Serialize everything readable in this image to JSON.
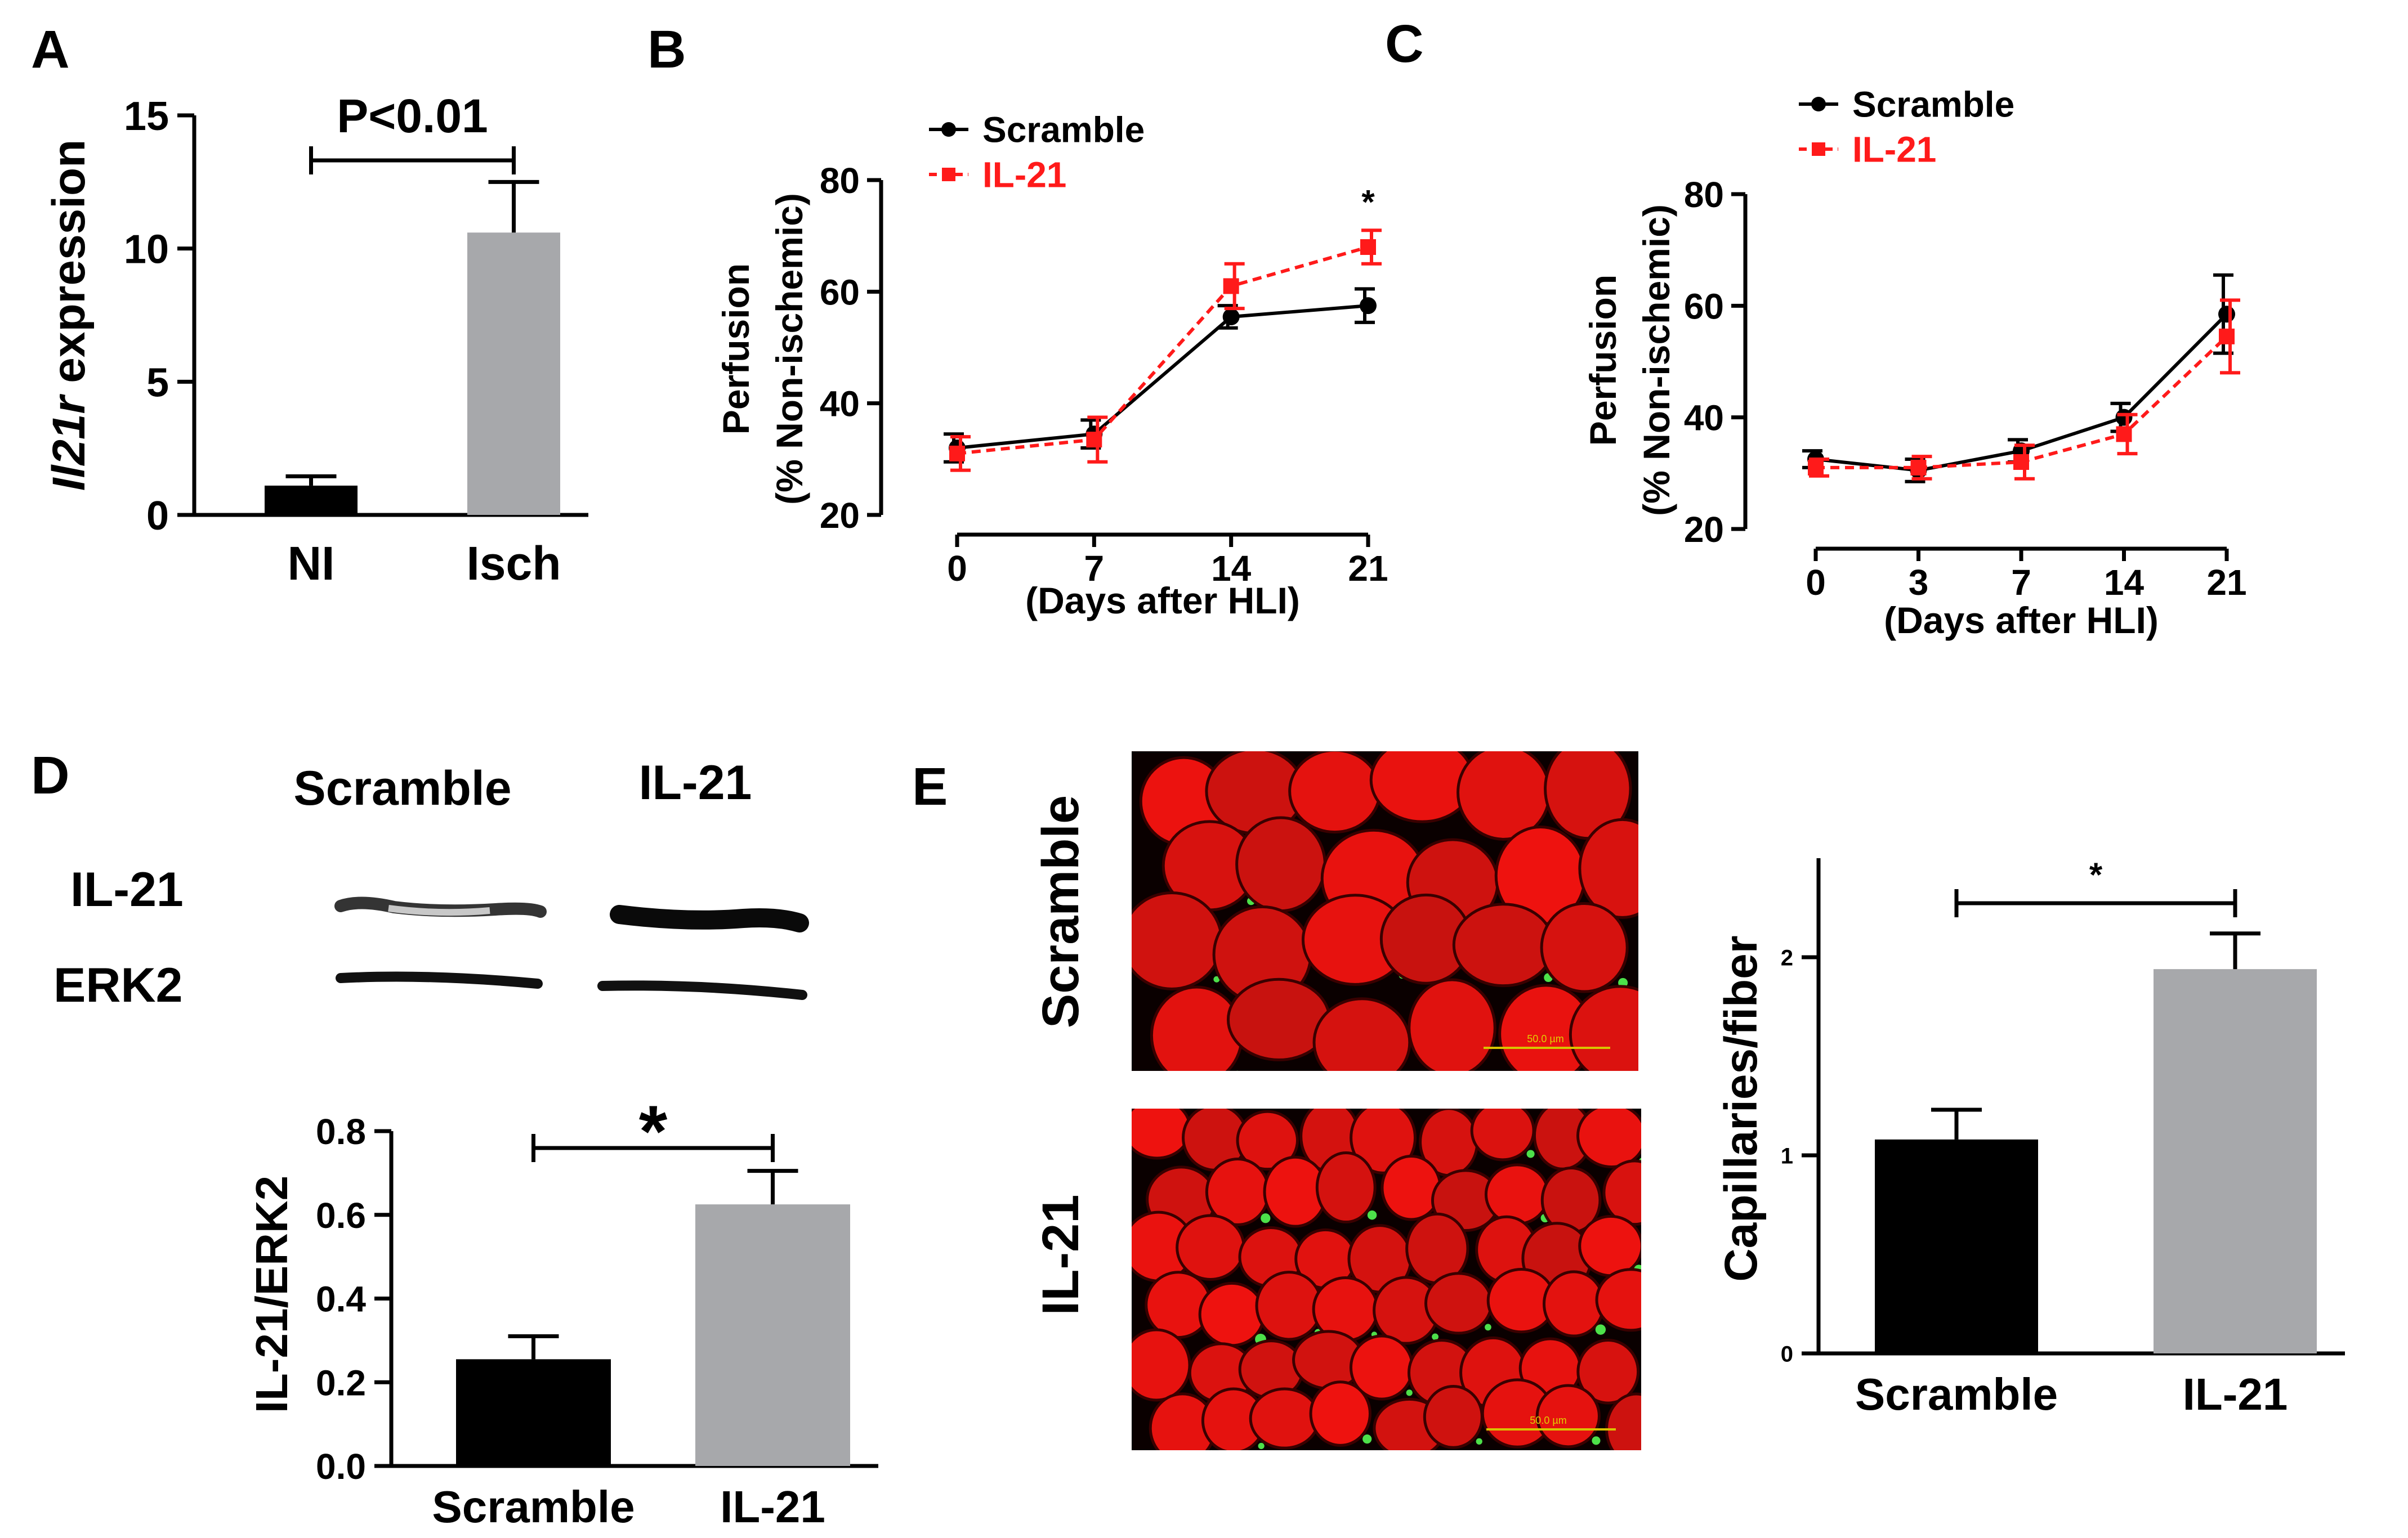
{
  "panels": {
    "A": {
      "letter": "A"
    },
    "B": {
      "letter": "B"
    },
    "C": {
      "letter": "C"
    },
    "D": {
      "letter": "D",
      "blot": {
        "lane_labels": [
          "Scramble",
          "IL-21"
        ],
        "row_labels": [
          "IL-21",
          "ERK2"
        ]
      }
    },
    "E": {
      "letter": "E",
      "image_labels": [
        "Scramble",
        "IL-21"
      ],
      "scale_bar_text": "50.0 µm"
    }
  },
  "colors": {
    "black_series": "#000000",
    "red_series": "#ff1a1a",
    "grey_bar": "#a7a8ab",
    "tissue_red": "#e8130f",
    "capillary_green": "#4de04a"
  },
  "chart_data": [
    {
      "id": "A",
      "type": "bar",
      "categories": [
        "NI",
        "Isch"
      ],
      "values": [
        1.1,
        10.6
      ],
      "errors": [
        0.35,
        1.9
      ],
      "colors": [
        "#000000",
        "#a7a8ab"
      ],
      "ylabel_italic": "Il21r",
      "ylabel_rest": " expression",
      "ylim": [
        0,
        15
      ],
      "yticks": [
        "0",
        "5",
        "10",
        "15"
      ],
      "annotation": "P<0.01"
    },
    {
      "id": "B",
      "type": "line",
      "x": [
        0,
        7,
        14,
        21
      ],
      "xticks": [
        "0",
        "7",
        "14",
        "21"
      ],
      "series": [
        {
          "name": "Scramble",
          "color": "#000000",
          "dashed": false,
          "marker": "circle",
          "values": [
            32,
            34.5,
            55.5,
            57.5
          ],
          "errors": [
            2.5,
            2.5,
            2,
            3
          ]
        },
        {
          "name": "IL-21",
          "color": "#ff1a1a",
          "dashed": true,
          "marker": "square",
          "values": [
            31,
            33.5,
            61,
            68
          ],
          "errors": [
            3,
            4,
            4,
            3
          ]
        }
      ],
      "ylabel_line1": "Perfusion",
      "ylabel_line2": "(% Non-ischemic)",
      "xlabel": "(Days after HLI)",
      "ylim": [
        20,
        80
      ],
      "yticks": [
        "20",
        "40",
        "60",
        "80"
      ],
      "star_label": "*",
      "star_at": 21
    },
    {
      "id": "C",
      "type": "line",
      "x": [
        0,
        3,
        7,
        14,
        21
      ],
      "xticks": [
        "0",
        "3",
        "7",
        "14",
        "21"
      ],
      "series": [
        {
          "name": "Scramble",
          "color": "#000000",
          "dashed": false,
          "marker": "circle",
          "values": [
            32.5,
            30.5,
            34,
            40,
            58.5
          ],
          "errors": [
            1.5,
            2,
            2,
            2.5,
            7
          ]
        },
        {
          "name": "IL-21",
          "color": "#ff1a1a",
          "dashed": true,
          "marker": "square",
          "values": [
            31,
            31,
            32,
            37,
            54.5
          ],
          "errors": [
            1.5,
            2,
            3,
            3.5,
            6.5
          ]
        }
      ],
      "ylabel_line1": "Perfusion",
      "ylabel_line2": "(% Non-ischemic)",
      "xlabel": "(Days after HLI)",
      "ylim": [
        20,
        80
      ],
      "yticks": [
        "20",
        "40",
        "60",
        "80"
      ]
    },
    {
      "id": "D",
      "type": "bar",
      "categories": [
        "Scramble",
        "IL-21"
      ],
      "values": [
        0.255,
        0.625
      ],
      "errors": [
        0.055,
        0.08
      ],
      "colors": [
        "#000000",
        "#a7a8ab"
      ],
      "ylabel": "IL-21/ERK2",
      "ylim": [
        0,
        0.8
      ],
      "yticks": [
        "0.0",
        "0.2",
        "0.4",
        "0.6",
        "0.8"
      ],
      "annotation": "*"
    },
    {
      "id": "E",
      "type": "bar",
      "categories": [
        "Scramble",
        "IL-21"
      ],
      "values": [
        1.08,
        1.94
      ],
      "errors": [
        0.15,
        0.18
      ],
      "colors": [
        "#000000",
        "#a7a8ab"
      ],
      "ylabel": "Capillaries/fiber",
      "ylim": [
        0,
        2.5
      ],
      "yticks": [
        "0",
        "1",
        "2"
      ],
      "annotation": "*"
    }
  ]
}
